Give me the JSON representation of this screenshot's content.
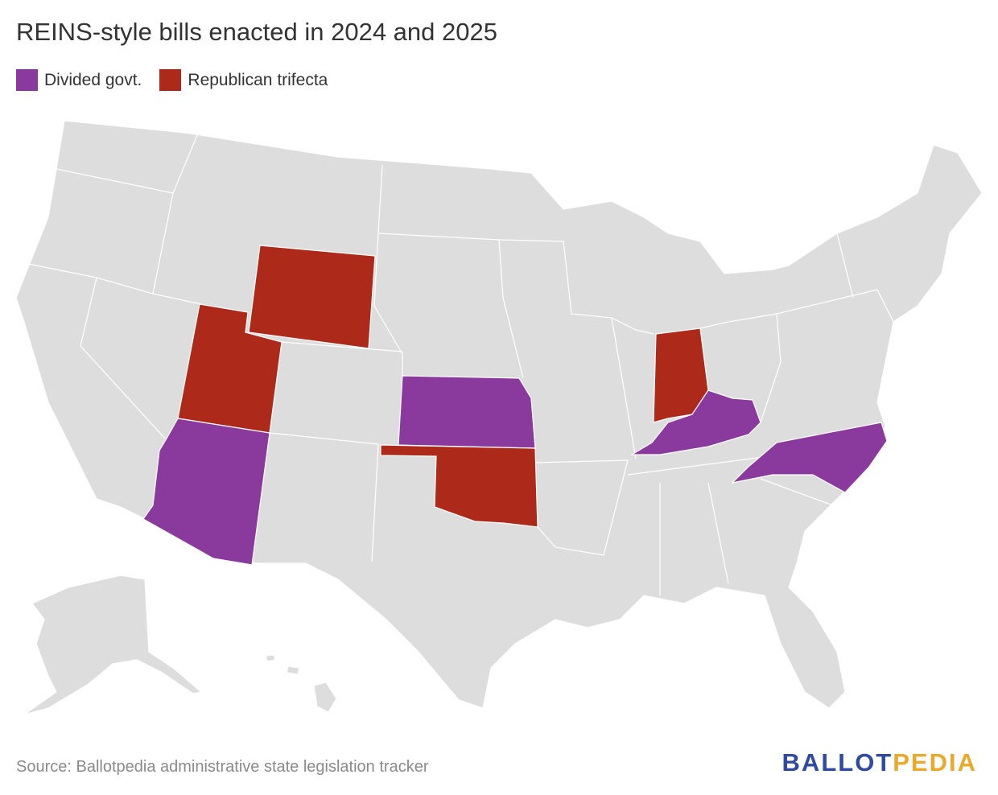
{
  "title": "REINS-style bills enacted in 2024 and 2025",
  "legend": [
    {
      "label": "Divided govt.",
      "color": "#8a3a9d"
    },
    {
      "label": "Republican trifecta",
      "color": "#ad2a1a"
    }
  ],
  "source": "Source: Ballotpedia administrative state legislation tracker",
  "logo": {
    "first": "BALLOT",
    "second": "PEDIA"
  }
}
